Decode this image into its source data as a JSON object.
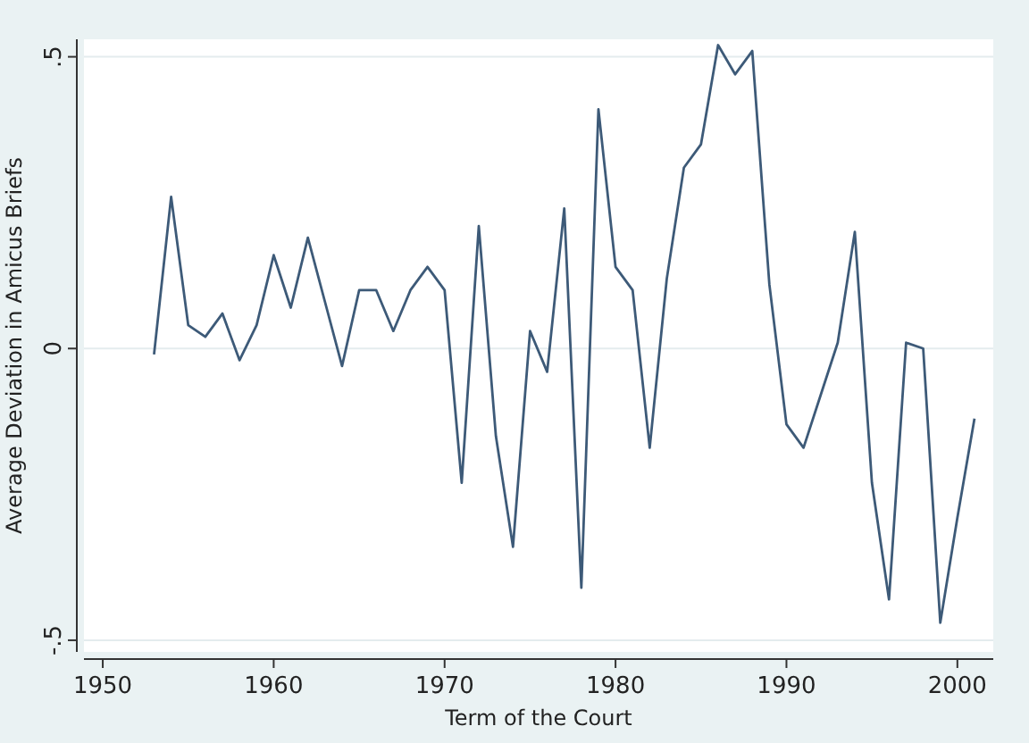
{
  "chart_data": {
    "type": "line",
    "xlabel": "Term of the Court",
    "ylabel": "Average Deviation in Amicus Briefs",
    "x": [
      1953,
      1954,
      1955,
      1956,
      1957,
      1958,
      1959,
      1960,
      1961,
      1962,
      1963,
      1964,
      1965,
      1966,
      1967,
      1968,
      1969,
      1970,
      1971,
      1972,
      1973,
      1974,
      1975,
      1976,
      1977,
      1978,
      1979,
      1980,
      1981,
      1982,
      1983,
      1984,
      1985,
      1986,
      1987,
      1988,
      1989,
      1990,
      1991,
      1992,
      1993,
      1994,
      1995,
      1996,
      1997,
      1998,
      1999,
      2000,
      2001
    ],
    "series": [
      {
        "color": "#3d5a78",
        "values": [
          -0.01,
          0.26,
          0.04,
          0.02,
          0.06,
          -0.02,
          0.04,
          0.16,
          0.07,
          0.19,
          0.08,
          -0.03,
          0.1,
          0.1,
          0.03,
          0.1,
          0.14,
          0.1,
          -0.23,
          0.21,
          -0.15,
          -0.34,
          0.03,
          -0.04,
          0.24,
          -0.41,
          0.41,
          0.14,
          0.1,
          -0.17,
          0.12,
          0.31,
          0.35,
          0.52,
          0.47,
          0.51,
          0.11,
          -0.13,
          -0.17,
          -0.08,
          0.01,
          0.2,
          -0.23,
          -0.43,
          0.01,
          0,
          -0.47,
          -0.29,
          -0.12
        ]
      }
    ],
    "xlim": [
      1948.9,
      2002.1
    ],
    "ylim": [
      -0.52,
      0.53
    ],
    "xticks": [
      1950,
      1960,
      1970,
      1980,
      1990,
      2000
    ],
    "yticks": [
      {
        "value": -0.5,
        "label": "-.5"
      },
      0,
      {
        "value": 0.5,
        "label": ".5"
      }
    ],
    "grid": "y",
    "marker": "none",
    "line_style": "solid"
  }
}
